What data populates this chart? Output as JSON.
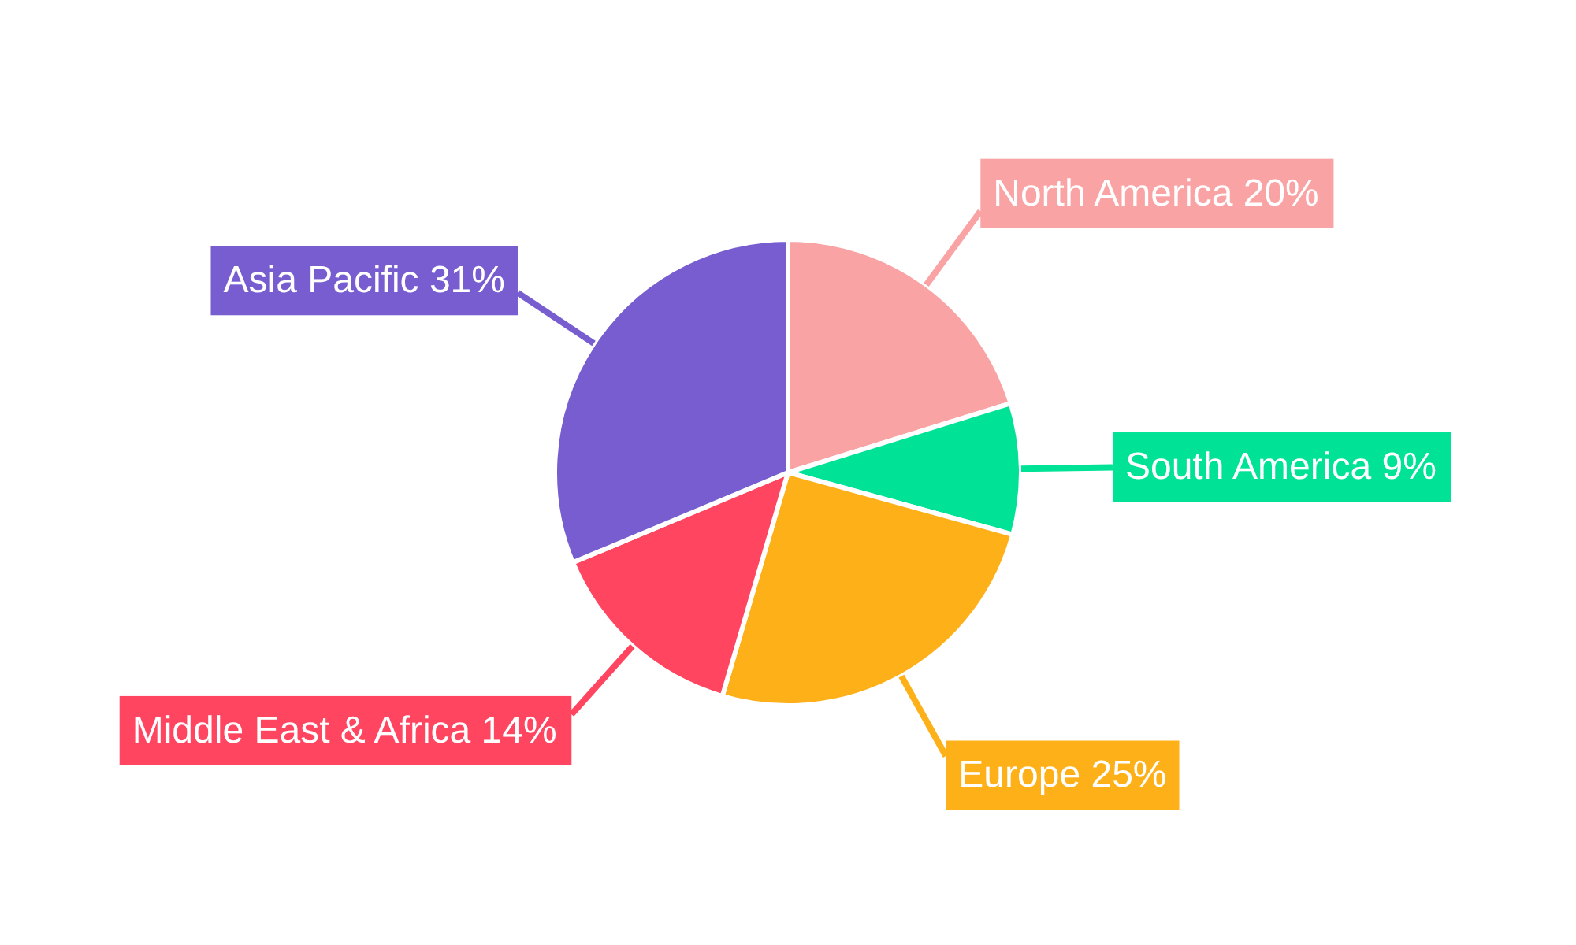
{
  "chart_data": {
    "type": "pie",
    "categories": [
      "North America",
      "South America",
      "Europe",
      "Middle East & Africa",
      "Asia Pacific"
    ],
    "values": [
      20,
      9,
      25,
      14,
      31
    ],
    "colors": [
      "#f9a3a4",
      "#00e396",
      "#feb019",
      "#ff4560",
      "#775dd0"
    ],
    "value_labels": [
      "20%",
      "9%",
      "25%",
      "14%",
      "31%"
    ]
  }
}
